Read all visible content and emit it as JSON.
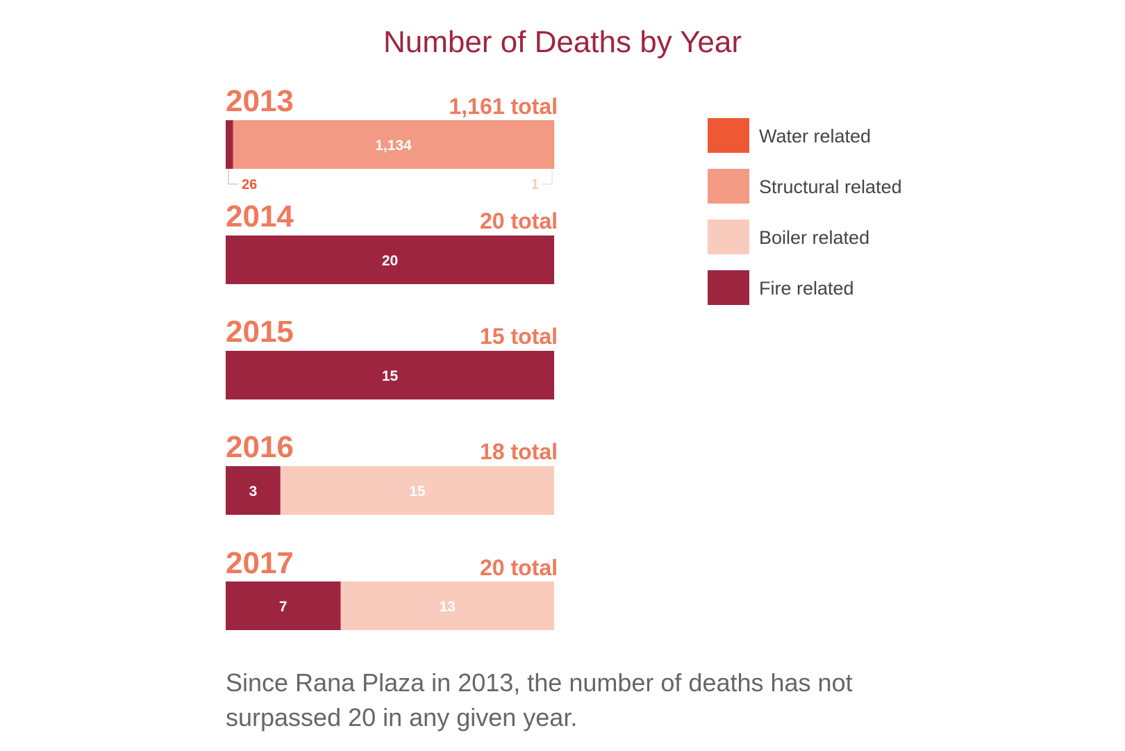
{
  "chart_data": {
    "type": "bar",
    "orientation": "horizontal",
    "stacked": true,
    "title": "Number of Deaths by Year",
    "categories": [
      "2013",
      "2014",
      "2015",
      "2016",
      "2017"
    ],
    "totals_labels": [
      "1,161 total",
      "20 total",
      "15 total",
      "18 total",
      "20 total"
    ],
    "totals": [
      1161,
      20,
      15,
      18,
      20
    ],
    "series": [
      {
        "name": "Fire related",
        "color": "#9e2540",
        "values": [
          26,
          20,
          15,
          3,
          7
        ],
        "labels": [
          "26",
          "20",
          "15",
          "3",
          "7"
        ]
      },
      {
        "name": "Structural related",
        "color": "#f29a83",
        "values": [
          1134,
          0,
          0,
          0,
          0
        ],
        "labels": [
          "1,134",
          "",
          "",
          "",
          ""
        ]
      },
      {
        "name": "Boiler related",
        "color": "#f8cbbd",
        "values": [
          0,
          0,
          0,
          15,
          13
        ],
        "labels": [
          "",
          "",
          "",
          "15",
          "13"
        ]
      },
      {
        "name": "Water related",
        "color": "#ef5834",
        "values": [
          1,
          0,
          0,
          0,
          0
        ],
        "labels": [
          "1",
          "",
          "",
          "",
          ""
        ]
      }
    ],
    "legend": {
      "placement": "right",
      "order": [
        "Water related",
        "Structural related",
        "Boiler related",
        "Fire related"
      ]
    }
  },
  "footnote": "Since Rana Plaza in 2013, the number of deaths has not surpassed 20 in any given year."
}
